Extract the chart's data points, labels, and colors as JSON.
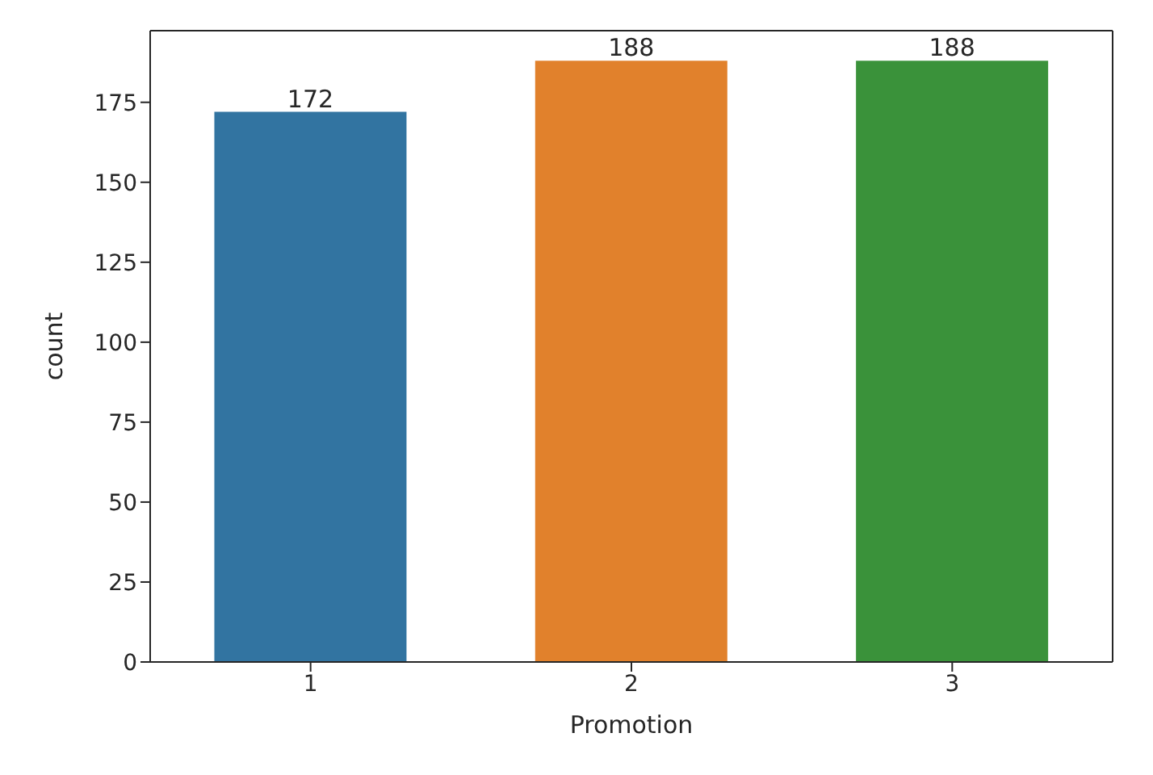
{
  "chart_data": {
    "type": "bar",
    "categories": [
      "1",
      "2",
      "3"
    ],
    "values": [
      172,
      188,
      188
    ],
    "colors": [
      "#3274a1",
      "#e1812c",
      "#3a923a"
    ],
    "xlabel": "Promotion",
    "ylabel": "count",
    "ylim": [
      0,
      197.4
    ],
    "yticks": [
      0,
      25,
      50,
      75,
      100,
      125,
      150,
      175
    ],
    "data_labels": true
  }
}
